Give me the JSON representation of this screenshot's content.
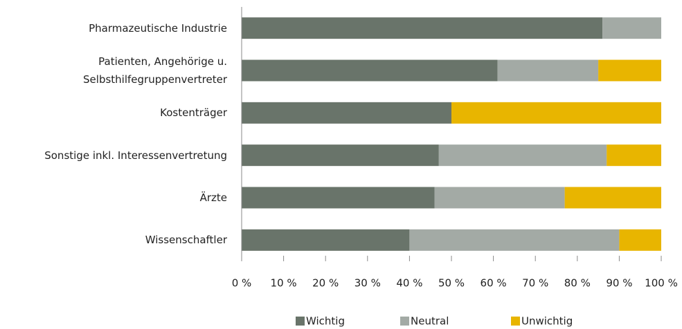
{
  "chart_data": {
    "type": "stacked-barh",
    "categories": [
      "Pharmazeutische Industrie",
      "Patienten, Angehörige u.\nSelbsthilfegruppenvertreter",
      "Kostenträger",
      "Sonstige inkl. Interessenvertretung",
      "Ärzte",
      "Wissenschaftler"
    ],
    "series": [
      {
        "name": "Wichtig",
        "color": "#69746a",
        "values": [
          86,
          61,
          50,
          47,
          46,
          40
        ]
      },
      {
        "name": "Neutral",
        "color": "#a3aaa5",
        "values": [
          14,
          24,
          0,
          40,
          31,
          50
        ]
      },
      {
        "name": "Unwichtig",
        "color": "#e8b500",
        "values": [
          0,
          15,
          50,
          13,
          23,
          10
        ]
      }
    ],
    "xlim": [
      0,
      100
    ],
    "xticks": [
      {
        "value": 0,
        "label": "0 %"
      },
      {
        "value": 10,
        "label": "10 %"
      },
      {
        "value": 20,
        "label": "20 %"
      },
      {
        "value": 30,
        "label": "30 %"
      },
      {
        "value": 40,
        "label": "40 %"
      },
      {
        "value": 50,
        "label": "50 %"
      },
      {
        "value": 60,
        "label": "60 %"
      },
      {
        "value": 70,
        "label": "70 %"
      },
      {
        "value": 80,
        "label": "80 %"
      },
      {
        "value": 90,
        "label": "90 %"
      },
      {
        "value": 100,
        "label": "100 %"
      }
    ],
    "legend": "bottom"
  }
}
